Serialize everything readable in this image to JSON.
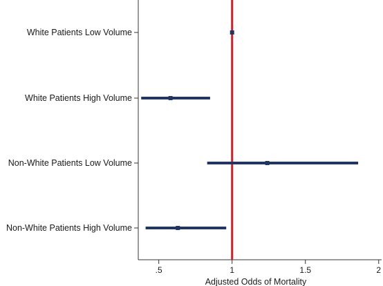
{
  "chart_data": {
    "type": "forest",
    "categories": [
      "White Patients Low Volume",
      "White Patients High Volume",
      "Non-White Patients Low Volume",
      "Non-White Patients High Volume"
    ],
    "series": [
      {
        "estimates": [
          1.0,
          0.58,
          1.24,
          0.63
        ],
        "ci_low": [
          1.0,
          0.38,
          0.83,
          0.41
        ],
        "ci_high": [
          1.0,
          0.85,
          1.86,
          0.96
        ]
      }
    ],
    "xlabel": "Adjusted Odds of Mortality",
    "ylabel": "",
    "xlim": [
      0.36,
      2.02
    ],
    "xticks": [
      0.5,
      1,
      1.5,
      2
    ],
    "xtick_labels": [
      ".5",
      "1",
      "1.5",
      "2"
    ],
    "reference_line": 1,
    "grid": false,
    "colors": {
      "interval": "#1f3563",
      "reference": "#c0282d",
      "axis": "#333333"
    }
  }
}
